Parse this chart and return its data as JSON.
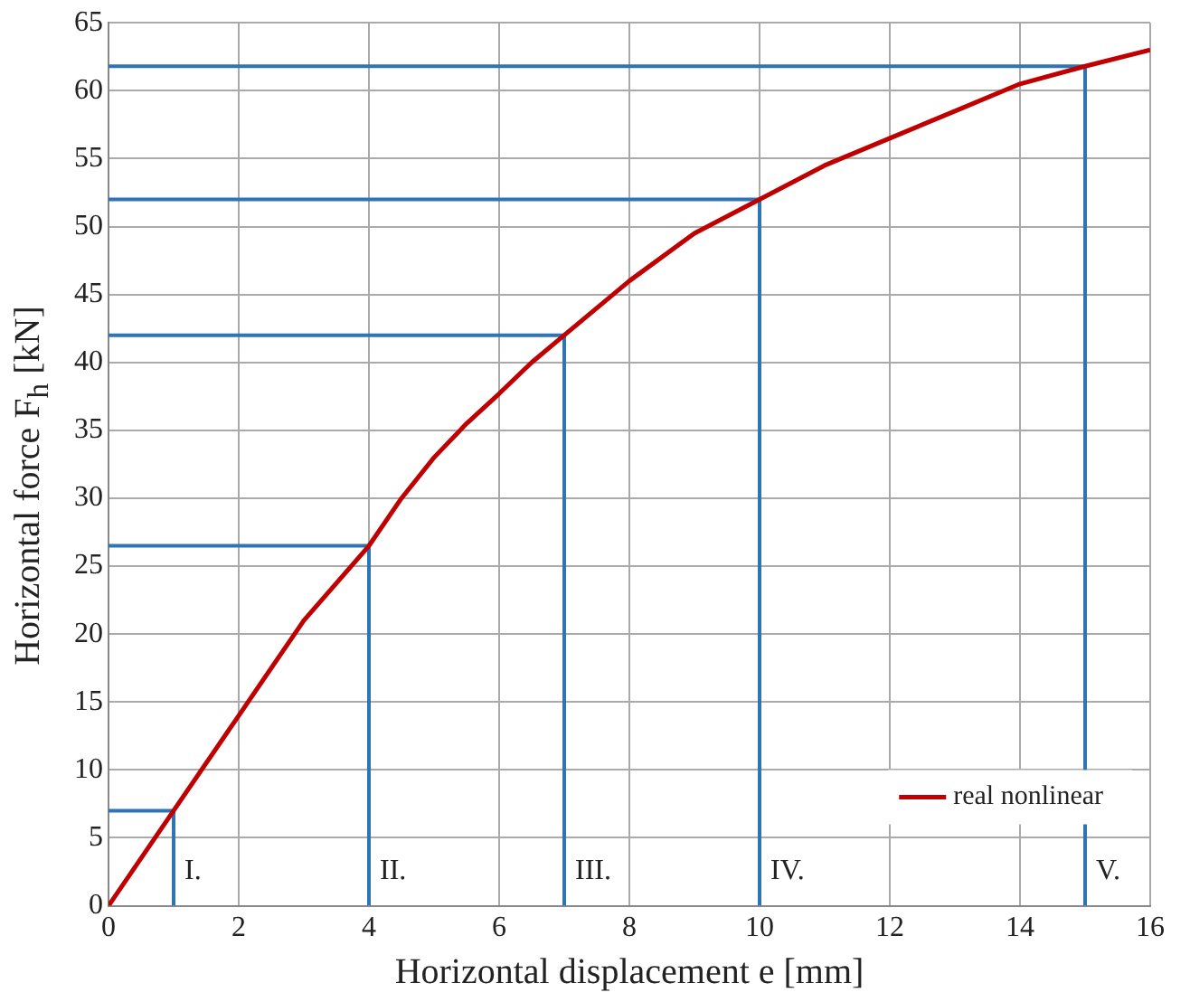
{
  "chart_data": {
    "type": "line",
    "xlabel": "Horizontal displacement e [mm]",
    "ylabel": "Horizontal force F$_{h}$ [kN]",
    "xlim": [
      0,
      16
    ],
    "xticks": [
      0,
      2,
      4,
      6,
      8,
      10,
      12,
      14,
      16
    ],
    "ylim": [
      0,
      65
    ],
    "yticks": [
      0,
      5,
      10,
      15,
      20,
      25,
      30,
      35,
      40,
      45,
      50,
      55,
      60,
      65
    ],
    "grid": true,
    "legend": "bottom right",
    "marker": "none",
    "line_style": "solid",
    "series": [
      {
        "name": "real nonlinear",
        "color": "#c00000",
        "x": [
          0,
          1,
          2,
          3,
          4,
          4.5,
          5,
          5.5,
          6,
          6.5,
          7,
          8,
          9,
          10,
          11,
          12,
          13,
          14,
          15,
          16
        ],
        "values": [
          0,
          7,
          14,
          21,
          26.5,
          30,
          33,
          35.5,
          37.7,
          40,
          42,
          46,
          49.5,
          52,
          54.5,
          56.5,
          58.5,
          60.5,
          61.8,
          63
        ]
      },
      {
        "color": "#2e75b6",
        "x": [
          1,
          1,
          0
        ],
        "values": [
          0,
          7,
          7
        ]
      },
      {
        "color": "#2e75b6",
        "x": [
          4,
          4,
          0
        ],
        "values": [
          0,
          26.5,
          26.5
        ]
      },
      {
        "color": "#2e75b6",
        "x": [
          7,
          7,
          0
        ],
        "values": [
          0,
          42,
          42
        ]
      },
      {
        "color": "#2e75b6",
        "x": [
          10,
          10,
          0
        ],
        "values": [
          0,
          52,
          52
        ]
      },
      {
        "color": "#2e75b6",
        "x": [
          15,
          15,
          0
        ],
        "values": [
          0,
          61.8,
          61.8
        ]
      }
    ],
    "annotations": [
      {
        "text": "I.",
        "x": 1,
        "y": 2
      },
      {
        "text": "II.",
        "x": 4,
        "y": 2
      },
      {
        "text": "III.",
        "x": 7,
        "y": 2
      },
      {
        "text": "IV.",
        "x": 10,
        "y": 2
      },
      {
        "text": "V.",
        "x": 15,
        "y": 2
      }
    ]
  }
}
